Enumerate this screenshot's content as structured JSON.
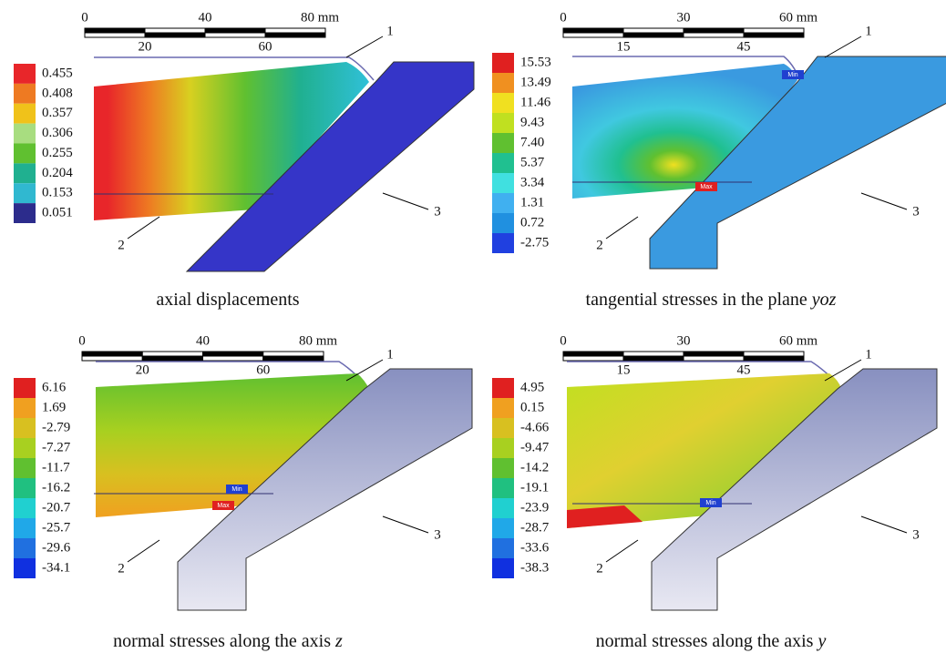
{
  "panels": [
    {
      "caption": "axial displacements",
      "scale_top": [
        "0",
        "40",
        "80 mm"
      ],
      "scale_bottom": [
        "20",
        "60"
      ],
      "legend": [
        "0.455",
        "0.408",
        "0.357",
        "0.306",
        "0.255",
        "0.204",
        "0.153",
        "0.051"
      ],
      "callouts": [
        "1",
        "2",
        "3"
      ],
      "tags": []
    },
    {
      "caption": "tangential stresses in the plane",
      "caption_italic": "yoz",
      "scale_top": [
        "0",
        "30",
        "60 mm"
      ],
      "scale_bottom": [
        "15",
        "45"
      ],
      "legend": [
        "15.53",
        "13.49",
        "11.46",
        "9.43",
        "7.40",
        "5.37",
        "3.34",
        "1.31",
        "0.72",
        "-2.75"
      ],
      "callouts": [
        "1",
        "2",
        "3"
      ],
      "tags": [
        "Min",
        "Max"
      ]
    },
    {
      "caption": "normal stresses along the axis",
      "caption_italic": "z",
      "scale_top": [
        "0",
        "40",
        "80 mm"
      ],
      "scale_bottom": [
        "20",
        "60"
      ],
      "legend": [
        "6.16",
        "1.69",
        "-2.79",
        "-7.27",
        "-11.7",
        "-16.2",
        "-20.7",
        "-25.7",
        "-29.6",
        "-34.1"
      ],
      "callouts": [
        "1",
        "2",
        "3"
      ],
      "tags": [
        "Min",
        "Max"
      ]
    },
    {
      "caption": "normal stresses along the axis",
      "caption_italic": "y",
      "scale_top": [
        "0",
        "30",
        "60 mm"
      ],
      "scale_bottom": [
        "15",
        "45"
      ],
      "legend": [
        "4.95",
        "0.15",
        "-4.66",
        "-9.47",
        "-14.2",
        "-19.1",
        "-23.9",
        "-28.7",
        "-33.6",
        "-38.3"
      ],
      "callouts": [
        "1",
        "2",
        "3"
      ],
      "tags": [
        "Min"
      ]
    }
  ]
}
